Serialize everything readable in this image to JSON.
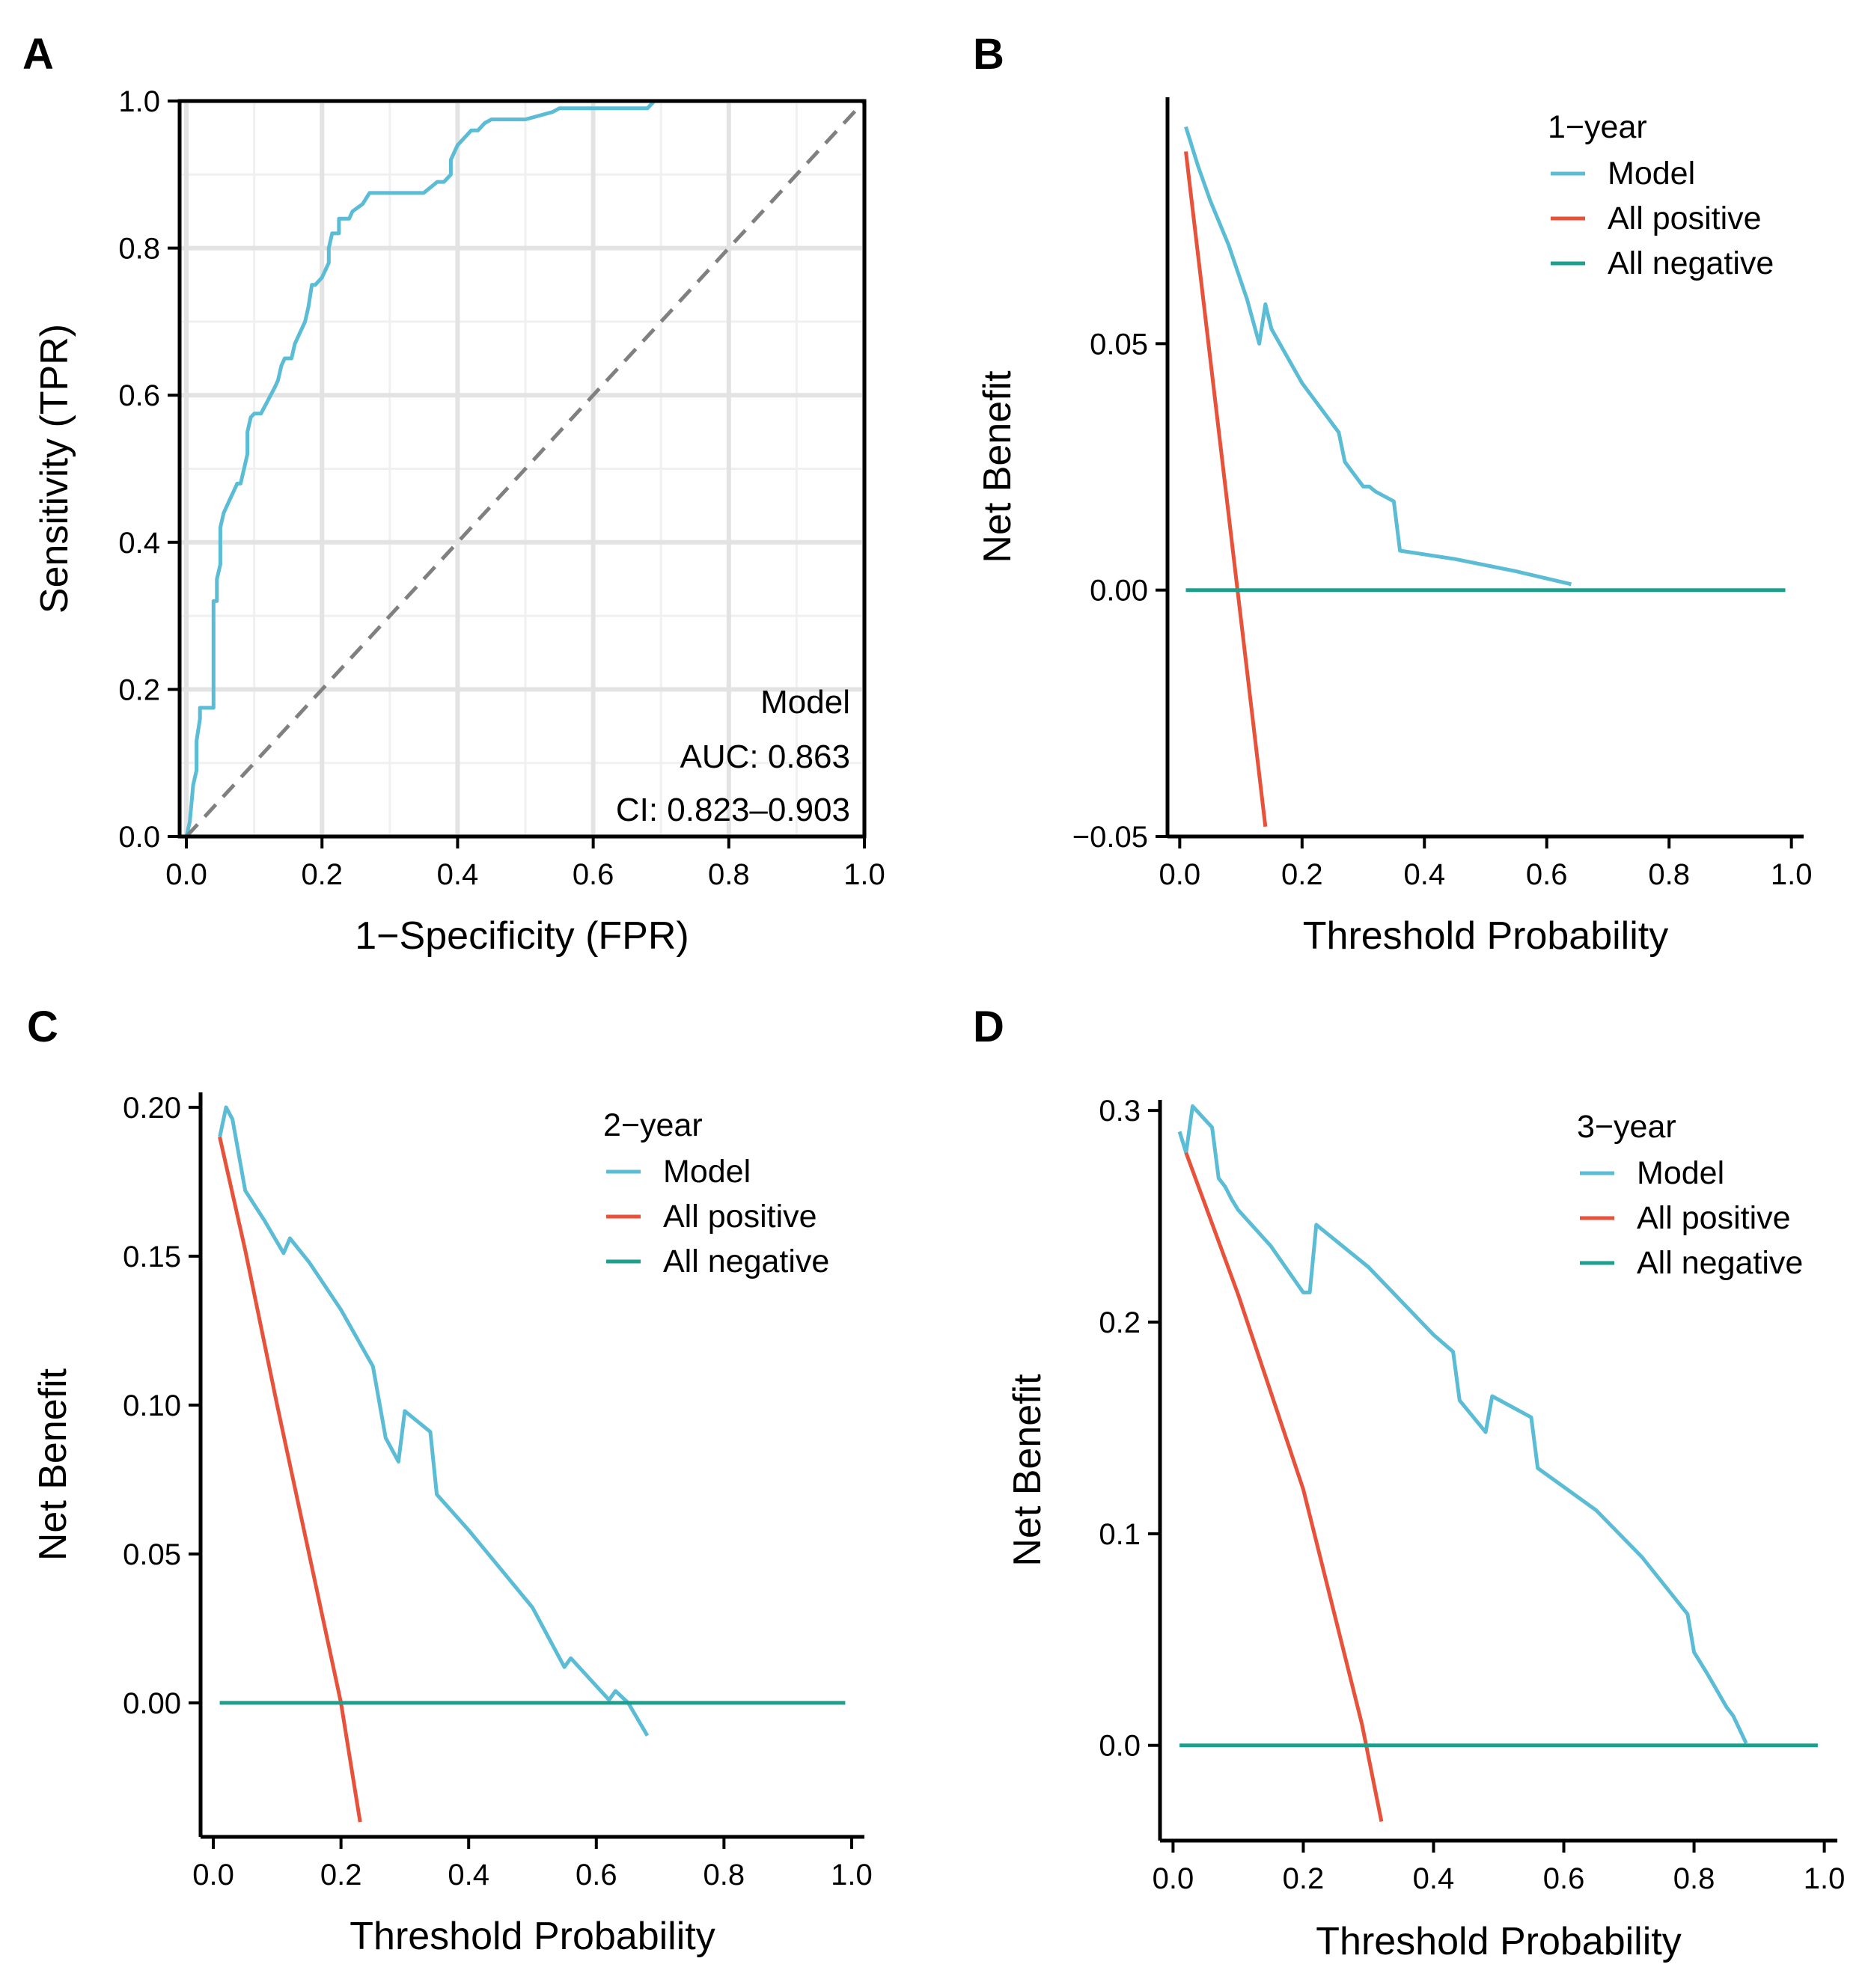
{
  "colors": {
    "model": "#5BBCD6",
    "all_positive": "#E8513A",
    "all_negative": "#1E9E8C",
    "diagonal": "#808080",
    "grid_major": "#E3E3E3",
    "grid_minor": "#F0F0F0",
    "panel_border": "#000000"
  },
  "chart_data": [
    {
      "panel": "A",
      "type": "line",
      "xlabel": "1−Specificity (FPR)",
      "ylabel": "Sensitivity (TPR)",
      "xlim": [
        0,
        1
      ],
      "ylim": [
        0,
        1
      ],
      "xticks": [
        "0.0",
        "0.2",
        "0.4",
        "0.6",
        "0.8",
        "1.0"
      ],
      "yticks": [
        "0.0",
        "0.2",
        "0.4",
        "0.6",
        "0.8",
        "1.0"
      ],
      "grid": true,
      "annotation": {
        "title": "Model",
        "auc": "AUC: 0.863",
        "ci": "CI: 0.823–0.903"
      },
      "series": [
        {
          "name": "Model",
          "color_key": "model",
          "x": [
            0,
            0.005,
            0.01,
            0.01,
            0.015,
            0.015,
            0.02,
            0.02,
            0.025,
            0.025,
            0.035,
            0.04,
            0.04,
            0.045,
            0.045,
            0.05,
            0.05,
            0.055,
            0.055,
            0.065,
            0.07,
            0.075,
            0.08,
            0.085,
            0.09,
            0.09,
            0.095,
            0.1,
            0.1,
            0.11,
            0.13,
            0.135,
            0.14,
            0.145,
            0.155,
            0.16,
            0.17,
            0.175,
            0.18,
            0.185,
            0.19,
            0.19,
            0.2,
            0.21,
            0.21,
            0.215,
            0.225,
            0.225,
            0.24,
            0.245,
            0.26,
            0.27,
            0.28,
            0.3,
            0.35,
            0.37,
            0.38,
            0.39,
            0.39,
            0.4,
            0.41,
            0.42,
            0.42,
            0.43,
            0.44,
            0.45,
            0.5,
            0.54,
            0.55,
            0.68,
            0.69,
            1.0
          ],
          "y": [
            0,
            0.02,
            0.07,
            0.07,
            0.09,
            0.13,
            0.16,
            0.175,
            0.175,
            0.175,
            0.175,
            0.175,
            0.32,
            0.32,
            0.35,
            0.37,
            0.42,
            0.44,
            0.44,
            0.46,
            0.47,
            0.48,
            0.48,
            0.5,
            0.52,
            0.55,
            0.57,
            0.575,
            0.575,
            0.575,
            0.61,
            0.62,
            0.64,
            0.65,
            0.65,
            0.67,
            0.69,
            0.7,
            0.72,
            0.75,
            0.75,
            0.75,
            0.76,
            0.78,
            0.8,
            0.82,
            0.82,
            0.84,
            0.84,
            0.85,
            0.86,
            0.875,
            0.875,
            0.875,
            0.875,
            0.89,
            0.89,
            0.9,
            0.92,
            0.94,
            0.95,
            0.96,
            0.96,
            0.96,
            0.97,
            0.975,
            0.975,
            0.985,
            0.99,
            0.99,
            1.0,
            1.0
          ]
        },
        {
          "name": "Reference",
          "color_key": "diagonal",
          "dashed": true,
          "x": [
            0,
            1
          ],
          "y": [
            0,
            1
          ]
        }
      ]
    },
    {
      "panel": "B",
      "type": "line",
      "xlabel": "Threshold Probability",
      "ylabel": "Net Benefit",
      "xlim": [
        0,
        1
      ],
      "ylim": [
        -0.05,
        0.1
      ],
      "xticks": [
        "0.0",
        "0.2",
        "0.4",
        "0.6",
        "0.8",
        "1.0"
      ],
      "yticks": [
        "−0.05",
        "0.00",
        "0.05"
      ],
      "ytick_values": [
        -0.05,
        0,
        0.05
      ],
      "legend": {
        "title": "1−year",
        "items": [
          "Model",
          "All positive",
          "All negative"
        ]
      },
      "series": [
        {
          "name": "Model",
          "color_key": "model",
          "x": [
            0.01,
            0.03,
            0.05,
            0.08,
            0.11,
            0.13,
            0.14,
            0.15,
            0.2,
            0.26,
            0.27,
            0.3,
            0.31,
            0.32,
            0.35,
            0.36,
            0.45,
            0.55,
            0.64
          ],
          "y": [
            0.094,
            0.086,
            0.079,
            0.07,
            0.059,
            0.05,
            0.058,
            0.053,
            0.042,
            0.032,
            0.026,
            0.021,
            0.021,
            0.02,
            0.018,
            0.008,
            0.0063,
            0.0038,
            0.0012
          ]
        },
        {
          "name": "All positive",
          "color_key": "all_positive",
          "x": [
            0.01,
            0.14
          ],
          "y": [
            0.089,
            -0.048
          ]
        },
        {
          "name": "All negative",
          "color_key": "all_negative",
          "x": [
            0.01,
            0.99
          ],
          "y": [
            0,
            0
          ]
        }
      ]
    },
    {
      "panel": "C",
      "type": "line",
      "xlabel": "Threshold Probability",
      "ylabel": "Net Benefit",
      "xlim": [
        0,
        1
      ],
      "ylim": [
        -0.045,
        0.205
      ],
      "xticks": [
        "0.0",
        "0.2",
        "0.4",
        "0.6",
        "0.8",
        "1.0"
      ],
      "yticks": [
        "0.00",
        "0.05",
        "0.10",
        "0.15",
        "0.20"
      ],
      "ytick_values": [
        0,
        0.05,
        0.1,
        0.15,
        0.2
      ],
      "legend": {
        "title": "2−year",
        "items": [
          "Model",
          "All positive",
          "All negative"
        ]
      },
      "series": [
        {
          "name": "Model",
          "color_key": "model",
          "x": [
            0.01,
            0.02,
            0.03,
            0.05,
            0.08,
            0.11,
            0.12,
            0.15,
            0.2,
            0.25,
            0.27,
            0.29,
            0.3,
            0.34,
            0.35,
            0.4,
            0.45,
            0.5,
            0.55,
            0.56,
            0.62,
            0.63,
            0.65,
            0.68
          ],
          "y": [
            0.19,
            0.2,
            0.196,
            0.172,
            0.162,
            0.151,
            0.156,
            0.148,
            0.132,
            0.113,
            0.089,
            0.081,
            0.098,
            0.091,
            0.07,
            0.058,
            0.045,
            0.032,
            0.012,
            0.015,
            0.001,
            0.004,
            0,
            -0.011
          ]
        },
        {
          "name": "All positive",
          "color_key": "all_positive",
          "x": [
            0.01,
            0.05,
            0.1,
            0.15,
            0.2,
            0.23
          ],
          "y": [
            0.19,
            0.152,
            0.1,
            0.05,
            0.0,
            -0.04
          ]
        },
        {
          "name": "All negative",
          "color_key": "all_negative",
          "x": [
            0.01,
            0.99
          ],
          "y": [
            0,
            0
          ]
        }
      ]
    },
    {
      "panel": "D",
      "type": "line",
      "xlabel": "Threshold Probability",
      "ylabel": "Net Benefit",
      "xlim": [
        0,
        1
      ],
      "ylim": [
        -0.045,
        0.305
      ],
      "xticks": [
        "0.0",
        "0.2",
        "0.4",
        "0.6",
        "0.8",
        "1.0"
      ],
      "yticks": [
        "0.0",
        "0.1",
        "0.2",
        "0.3"
      ],
      "ytick_values": [
        0,
        0.1,
        0.2,
        0.3
      ],
      "legend": {
        "title": "3−year",
        "items": [
          "Model",
          "All positive",
          "All negative"
        ]
      },
      "series": [
        {
          "name": "Model",
          "color_key": "model",
          "x": [
            0.01,
            0.02,
            0.03,
            0.06,
            0.07,
            0.08,
            0.09,
            0.1,
            0.15,
            0.2,
            0.21,
            0.22,
            0.3,
            0.4,
            0.43,
            0.44,
            0.48,
            0.49,
            0.55,
            0.56,
            0.65,
            0.72,
            0.79,
            0.8,
            0.82,
            0.85,
            0.86,
            0.88
          ],
          "y": [
            0.29,
            0.28,
            0.302,
            0.292,
            0.268,
            0.264,
            0.258,
            0.253,
            0.236,
            0.214,
            0.214,
            0.246,
            0.226,
            0.194,
            0.186,
            0.163,
            0.148,
            0.165,
            0.155,
            0.131,
            0.111,
            0.089,
            0.062,
            0.044,
            0.034,
            0.018,
            0.014,
            0.001
          ]
        },
        {
          "name": "All positive",
          "color_key": "all_positive",
          "x": [
            0.02,
            0.1,
            0.2,
            0.29,
            0.32
          ],
          "y": [
            0.28,
            0.213,
            0.121,
            0.01,
            -0.036
          ]
        },
        {
          "name": "All negative",
          "color_key": "all_negative",
          "x": [
            0.01,
            0.99
          ],
          "y": [
            0,
            0
          ]
        }
      ]
    }
  ]
}
